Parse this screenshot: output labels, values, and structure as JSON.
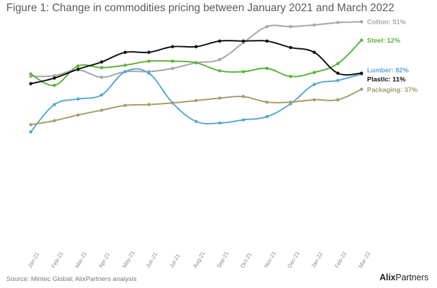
{
  "title": "Figure 1: Change in commodities pricing between January 2021 and March 2022",
  "source": "Source: Mintec Global; AlixPartners analysis",
  "brand": {
    "part1": "Alix",
    "part2": "Partners"
  },
  "chart_data": {
    "type": "line",
    "title": "Figure 1: Change in commodities pricing between January 2021 and March 2022",
    "xlabel": "",
    "ylabel": "",
    "y_axis_shown": false,
    "grid": false,
    "legend": "labels at line ends (right)",
    "categories": [
      "Jan-21",
      "Feb-21",
      "Mar-21",
      "Apr-21",
      "May-21",
      "Jun-21",
      "Jul-21",
      "Aug-21",
      "Sep-21",
      "Oct-21",
      "Nov-21",
      "Dec-21",
      "Jan-22",
      "Feb-22",
      "Mar-22"
    ],
    "ylim": [
      0,
      100
    ],
    "series": [
      {
        "name": "Cotton: 51%",
        "color": "#a6a6a6",
        "values": [
          65.5,
          66,
          69.5,
          65,
          68.5,
          68.5,
          70.5,
          74,
          76,
          86.5,
          96.5,
          96.5,
          97.5,
          99,
          99.5
        ]
      },
      {
        "name": "Steel: 12%",
        "color": "#5bb33a",
        "values": [
          67,
          60,
          72,
          71,
          72.5,
          75,
          75,
          74,
          69,
          68.5,
          70.5,
          65.5,
          68,
          73.5,
          88
        ]
      },
      {
        "name": "Lumber: 82%",
        "color": "#5aa8d2",
        "values": [
          31,
          48,
          51.5,
          54,
          68.5,
          67.5,
          49,
          37.5,
          36.5,
          38.5,
          40.5,
          48.5,
          60.5,
          63,
          67
        ]
      },
      {
        "name": "Plastic: 11%",
        "color": "#111111",
        "values": [
          61,
          64.5,
          70,
          74.5,
          80.5,
          80.5,
          84,
          84,
          87.5,
          87.5,
          87.5,
          83.5,
          80.5,
          67.5,
          67.5
        ]
      },
      {
        "name": "Packaging: 37%",
        "color": "#a59d6b",
        "values": [
          35.5,
          38,
          41.5,
          44.5,
          47.5,
          48,
          49,
          50.5,
          52,
          53,
          49.5,
          49.5,
          51,
          51,
          57.5
        ]
      }
    ]
  }
}
